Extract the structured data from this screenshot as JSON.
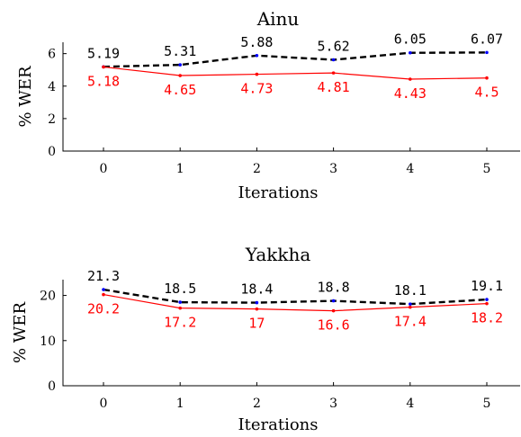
{
  "chart_data": [
    {
      "type": "line",
      "title": "Ainu",
      "xlabel": "Iterations",
      "ylabel": "% WER",
      "x": [
        0,
        1,
        2,
        3,
        4,
        5
      ],
      "x_tick_labels": [
        "0",
        "1",
        "2",
        "3",
        "4",
        "5"
      ],
      "y_tick_labels": [
        "0",
        "2",
        "4",
        "6"
      ],
      "ylim": [
        0,
        6.7
      ],
      "grid": false,
      "series": [
        {
          "values": [
            5.19,
            5.31,
            5.88,
            5.62,
            6.05,
            6.07
          ],
          "labels": [
            "5.19",
            "5.31",
            "5.88",
            "5.62",
            "6.05",
            "6.07"
          ],
          "color": "#000000",
          "marker_color": "#0000ff",
          "dashed": true
        },
        {
          "values": [
            5.18,
            4.65,
            4.73,
            4.81,
            4.43,
            4.5
          ],
          "labels": [
            "5.18",
            "4.65",
            "4.73",
            "4.81",
            "4.43",
            "4.5"
          ],
          "color": "#ff0000",
          "marker_color": "#ff0000",
          "dashed": false
        }
      ]
    },
    {
      "type": "line",
      "title": "Yakkha",
      "xlabel": "Iterations",
      "ylabel": "% WER",
      "x": [
        0,
        1,
        2,
        3,
        4,
        5
      ],
      "x_tick_labels": [
        "0",
        "1",
        "2",
        "3",
        "4",
        "5"
      ],
      "y_tick_labels": [
        "0",
        "10",
        "20"
      ],
      "ylim": [
        0,
        23.5
      ],
      "grid": false,
      "series": [
        {
          "values": [
            21.3,
            18.5,
            18.4,
            18.8,
            18.1,
            19.1
          ],
          "labels": [
            "21.3",
            "18.5",
            "18.4",
            "18.8",
            "18.1",
            "19.1"
          ],
          "color": "#000000",
          "marker_color": "#0000ff",
          "dashed": true
        },
        {
          "values": [
            20.2,
            17.2,
            17,
            16.6,
            17.4,
            18.2
          ],
          "labels": [
            "20.2",
            "17.2",
            "17",
            "16.6",
            "17.4",
            "18.2"
          ],
          "color": "#ff0000",
          "marker_color": "#ff0000",
          "dashed": false
        }
      ]
    }
  ]
}
